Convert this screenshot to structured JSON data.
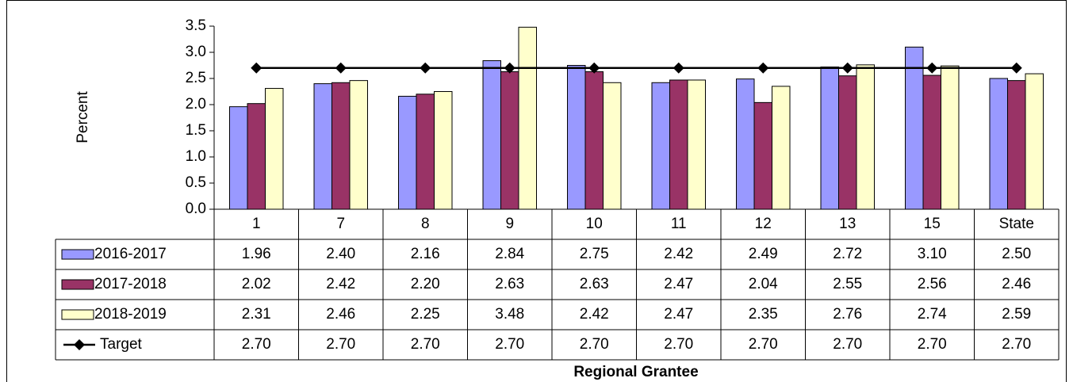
{
  "chart_data": {
    "type": "bar",
    "y_label": "Percent",
    "x_label": "Regional Grantee",
    "categories": [
      "1",
      "7",
      "8",
      "9",
      "10",
      "11",
      "12",
      "13",
      "15",
      "State"
    ],
    "ylim": [
      0,
      3.5
    ],
    "yticks": [
      {
        "value": 0,
        "label": "0.0"
      },
      {
        "value": 0.5,
        "label": "0.5"
      },
      {
        "value": 1,
        "label": "1.0"
      },
      {
        "value": 1.5,
        "label": "1.5"
      },
      {
        "value": 2,
        "label": "2.0"
      },
      {
        "value": 2.5,
        "label": "2.5"
      },
      {
        "value": 3,
        "label": "3.0"
      },
      {
        "value": 3.5,
        "label": "3.5"
      }
    ],
    "grid": false,
    "series": [
      {
        "name": "2016-2017",
        "type": "bar",
        "color": "#9999ff",
        "values": [
          1.96,
          2.4,
          2.16,
          2.84,
          2.75,
          2.42,
          2.49,
          2.72,
          3.1,
          2.5
        ],
        "value_labels": [
          "1.96",
          "2.40",
          "2.16",
          "2.84",
          "2.75",
          "2.42",
          "2.49",
          "2.72",
          "3.10",
          "2.50"
        ]
      },
      {
        "name": "2017-2018",
        "type": "bar",
        "color": "#993366",
        "values": [
          2.02,
          2.42,
          2.2,
          2.63,
          2.63,
          2.47,
          2.04,
          2.55,
          2.56,
          2.46
        ],
        "value_labels": [
          "2.02",
          "2.42",
          "2.20",
          "2.63",
          "2.63",
          "2.47",
          "2.04",
          "2.55",
          "2.56",
          "2.46"
        ]
      },
      {
        "name": "2018-2019",
        "type": "bar",
        "color": "#ffffcc",
        "values": [
          2.31,
          2.46,
          2.25,
          3.48,
          2.42,
          2.47,
          2.35,
          2.76,
          2.74,
          2.59
        ],
        "value_labels": [
          "2.31",
          "2.46",
          "2.25",
          "3.48",
          "2.42",
          "2.47",
          "2.35",
          "2.76",
          "2.74",
          "2.59"
        ]
      },
      {
        "name": "Target",
        "type": "line",
        "color": "#000000",
        "values": [
          2.7,
          2.7,
          2.7,
          2.7,
          2.7,
          2.7,
          2.7,
          2.7,
          2.7,
          2.7
        ],
        "value_labels": [
          "2.70",
          "2.70",
          "2.70",
          "2.70",
          "2.70",
          "2.70",
          "2.70",
          "2.70",
          "2.70",
          "2.70"
        ]
      }
    ]
  }
}
